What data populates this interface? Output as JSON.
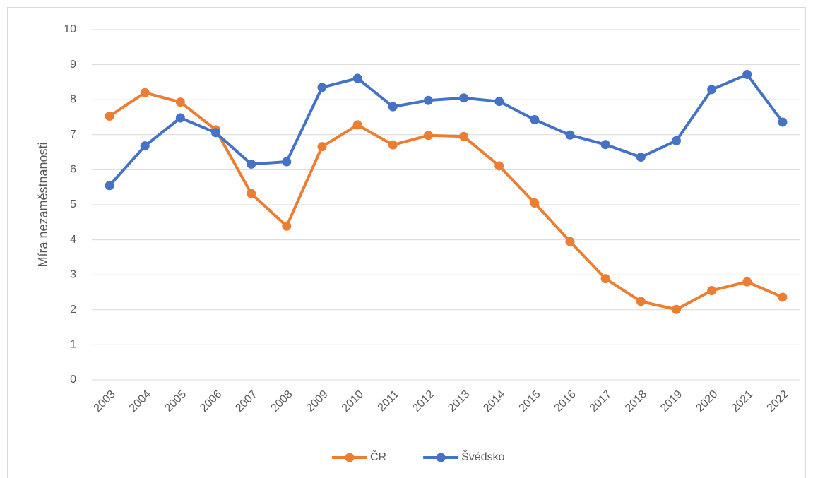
{
  "chart_data": {
    "type": "line",
    "y_label": "Míra nezaměstnanosti",
    "categories": [
      "2003",
      "2004",
      "2005",
      "2006",
      "2007",
      "2008",
      "2009",
      "2010",
      "2011",
      "2012",
      "2013",
      "2014",
      "2015",
      "2016",
      "2017",
      "2018",
      "2019",
      "2020",
      "2021",
      "2022"
    ],
    "series": [
      {
        "name": "ČR",
        "color": "#ed7d31",
        "values": [
          7.53,
          8.2,
          7.93,
          7.14,
          5.32,
          4.39,
          6.66,
          7.28,
          6.71,
          6.98,
          6.95,
          6.11,
          5.05,
          3.95,
          2.89,
          2.24,
          2.01,
          2.55,
          2.8,
          2.36
        ]
      },
      {
        "name": "Švédsko",
        "color": "#4472c4",
        "values": [
          5.55,
          6.68,
          7.48,
          7.06,
          6.16,
          6.23,
          8.35,
          8.61,
          7.8,
          7.98,
          8.05,
          7.95,
          7.43,
          6.99,
          6.72,
          6.36,
          6.83,
          8.29,
          8.72,
          7.36
        ]
      }
    ],
    "ylim": [
      0,
      10
    ],
    "yticks": [
      0,
      1,
      2,
      3,
      4,
      5,
      6,
      7,
      8,
      9,
      10
    ],
    "grid": true,
    "legend": "bottom"
  }
}
